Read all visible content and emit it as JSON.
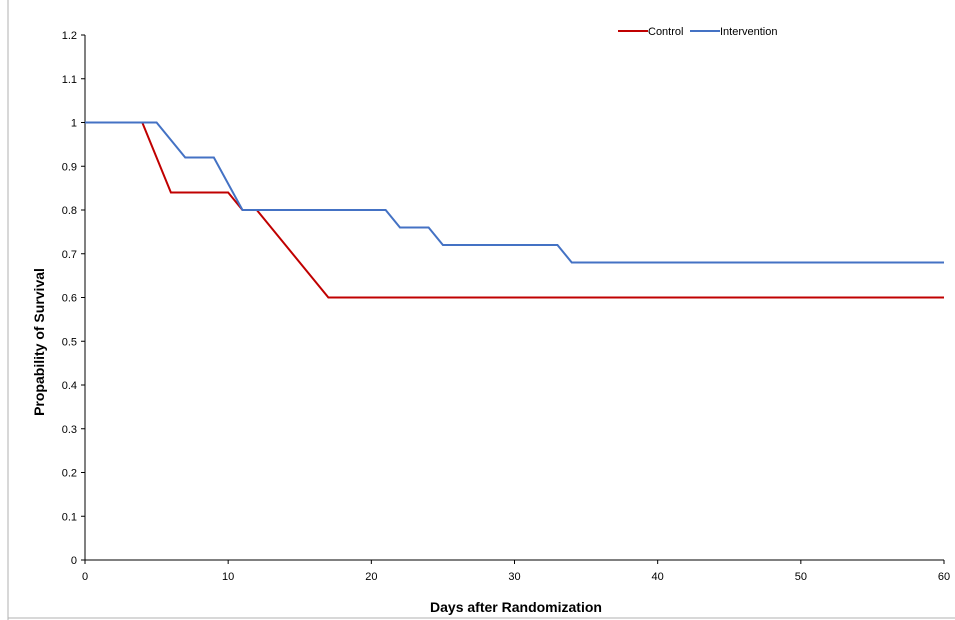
{
  "chart_data": {
    "type": "line",
    "title": "",
    "xlabel": "Days after Randomization",
    "ylabel": "Propability of Survival",
    "xlim": [
      0,
      60
    ],
    "ylim": [
      0,
      1.2
    ],
    "x_ticks": [
      "0",
      "10",
      "20",
      "30",
      "40",
      "50",
      "60"
    ],
    "y_ticks": [
      "0",
      "0.1",
      "0.2",
      "0.3",
      "0.4",
      "0.5",
      "0.6",
      "0.7",
      "0.8",
      "0.9",
      "1",
      "1.1",
      "1.2"
    ],
    "grid": false,
    "legend_position": "top-right",
    "series": [
      {
        "name": "Control",
        "color": "#c00000",
        "x": [
          0,
          4,
          6,
          10,
          11,
          12,
          14,
          17,
          60
        ],
        "y": [
          1.0,
          1.0,
          0.84,
          0.84,
          0.8,
          0.8,
          0.72,
          0.6,
          0.6
        ]
      },
      {
        "name": "Intervention",
        "color": "#4472c4",
        "x": [
          0,
          5,
          7,
          9,
          11,
          21,
          22,
          24,
          25,
          33,
          34,
          60
        ],
        "y": [
          1.0,
          1.0,
          0.92,
          0.92,
          0.8,
          0.8,
          0.76,
          0.76,
          0.72,
          0.72,
          0.68,
          0.68
        ]
      }
    ]
  }
}
